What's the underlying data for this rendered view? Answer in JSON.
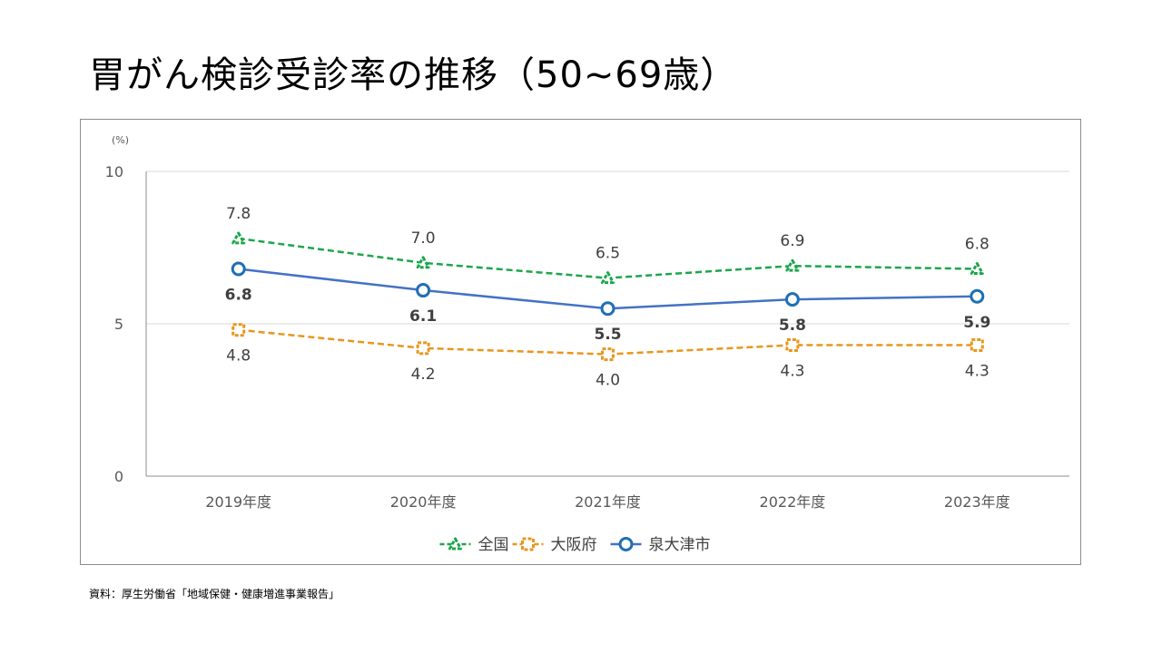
{
  "title": "胃がん検診受診率の推移（50~69歳）",
  "source": "資料：厚生労働省「地域保健・健康増進事業報告」",
  "chart_data": {
    "type": "line",
    "unit_label": "(%)",
    "categories": [
      "2019年度",
      "2020年度",
      "2021年度",
      "2022年度",
      "2023年度"
    ],
    "ylim": [
      0,
      10
    ],
    "yticks": [
      0,
      5,
      10
    ],
    "grid": true,
    "legend_position": "bottom",
    "series": [
      {
        "name": "全国",
        "values": [
          7.8,
          7.0,
          6.5,
          6.9,
          6.8
        ],
        "color": "#1ca64b",
        "line": "dashed",
        "marker": "triangle"
      },
      {
        "name": "大阪府",
        "values": [
          4.8,
          4.2,
          4.0,
          4.3,
          4.3
        ],
        "color": "#e8961e",
        "line": "dashed",
        "marker": "square"
      },
      {
        "name": "泉大津市",
        "values": [
          6.8,
          6.1,
          5.5,
          5.8,
          5.9
        ],
        "color": "#4472c4",
        "line": "solid",
        "marker": "circle",
        "marker_color": "#1f6fb5"
      }
    ]
  }
}
